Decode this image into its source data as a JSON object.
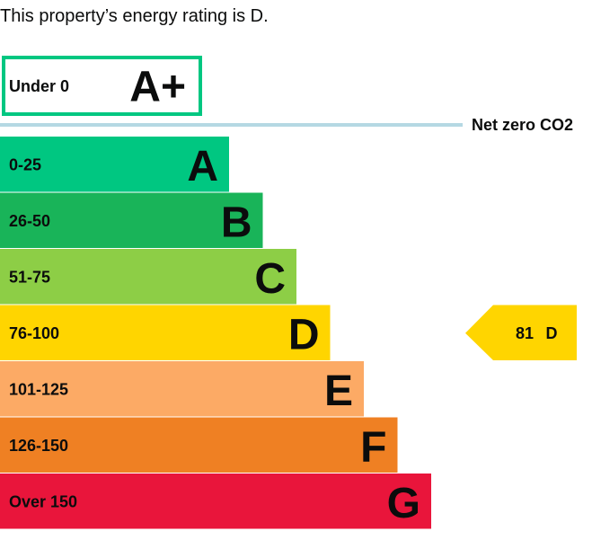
{
  "heading": "This property’s energy rating is D.",
  "top_band": {
    "range": "Under 0",
    "letter": "A+",
    "color": "#00c781"
  },
  "net_zero": {
    "label": "Net zero CO2",
    "color": "#b5d8e3"
  },
  "bands": [
    {
      "range": "0-25",
      "letter": "A",
      "color": "#00c781"
    },
    {
      "range": "26-50",
      "letter": "B",
      "color": "#19b459"
    },
    {
      "range": "51-75",
      "letter": "C",
      "color": "#8dce46"
    },
    {
      "range": "76-100",
      "letter": "D",
      "color": "#ffd500"
    },
    {
      "range": "101-125",
      "letter": "E",
      "color": "#fcaa65"
    },
    {
      "range": "126-150",
      "letter": "F",
      "color": "#ef8023"
    },
    {
      "range": "Over 150",
      "letter": "G",
      "color": "#e9153b"
    }
  ],
  "current": {
    "score": 81,
    "letter": "D"
  }
}
